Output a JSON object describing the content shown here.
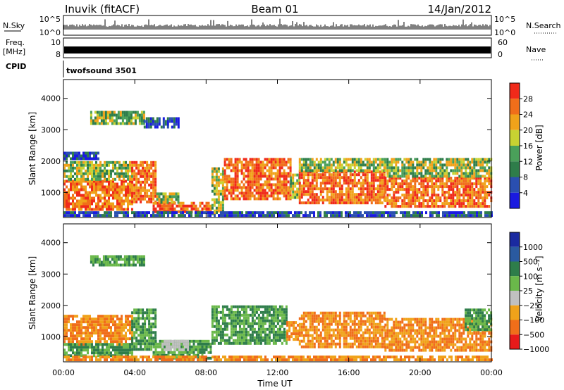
{
  "header": {
    "station": "Inuvik (fitACF)",
    "beam": "Beam 01",
    "date": "14/Jan/2012"
  },
  "side_labels": {
    "nsky": "N.Sky",
    "freq": "Freq.",
    "mhz": "[MHz]",
    "cpid": "CPID",
    "nsearch": "N.Search",
    "nave": "Nave"
  },
  "noise_panel": {
    "left_ticks": [
      "10^5",
      "10^0"
    ],
    "right_ticks": [
      "10^5",
      "10^0"
    ]
  },
  "freq_panel": {
    "left_ticks": [
      "10",
      "8"
    ],
    "right_ticks": [
      "60",
      "0"
    ]
  },
  "cpid_panel": {
    "program": "twofsound 3501"
  },
  "colors": {
    "power_scale": [
      "#1a1ae0",
      "#2a4fb0",
      "#2e7d4a",
      "#4aa05a",
      "#c8d232",
      "#f0a21a",
      "#f06e1a",
      "#f02a1a"
    ],
    "velocity_scale": [
      "#1a2aa0",
      "#2a5aa0",
      "#2e7d4a",
      "#6ab84a",
      "#c0c0c0",
      "#f0a21a",
      "#f06e1a",
      "#e81a1a"
    ]
  },
  "chart_data": [
    {
      "type": "heatmap",
      "panel": "power",
      "ylabel": "Slant Range [km]",
      "xlabel": "",
      "x_ticks": [
        "00:00",
        "04:00",
        "08:00",
        "12:00",
        "16:00",
        "20:00",
        "00:00"
      ],
      "y_ticks": [
        "1000",
        "2000",
        "3000",
        "4000"
      ],
      "xlim": [
        0,
        24
      ],
      "ylim": [
        200,
        4600
      ],
      "colorbar": {
        "title": "Power [dB]",
        "ticks": [
          "4",
          "8",
          "12",
          "16",
          "20",
          "24",
          "28"
        ],
        "range": [
          0,
          32
        ]
      },
      "regions": [
        {
          "t0": 0.0,
          "t1": 3.8,
          "r0": 500,
          "r1": 1400,
          "level": "high"
        },
        {
          "t0": 0.0,
          "t1": 3.8,
          "r0": 1400,
          "r1": 2000,
          "level": "mid"
        },
        {
          "t0": 3.8,
          "t1": 5.2,
          "r0": 700,
          "r1": 2000,
          "level": "high"
        },
        {
          "t0": 5.0,
          "t1": 8.3,
          "r0": 350,
          "r1": 700,
          "level": "high"
        },
        {
          "t0": 5.2,
          "t1": 6.5,
          "r0": 700,
          "r1": 1000,
          "level": "mid"
        },
        {
          "t0": 8.3,
          "t1": 9.0,
          "r0": 300,
          "r1": 1800,
          "level": "mid"
        },
        {
          "t0": 9.0,
          "t1": 12.7,
          "r0": 800,
          "r1": 2100,
          "level": "high"
        },
        {
          "t0": 12.7,
          "t1": 13.2,
          "r0": 800,
          "r1": 1600,
          "level": "mid"
        },
        {
          "t0": 13.2,
          "t1": 18.0,
          "r0": 700,
          "r1": 1700,
          "level": "high"
        },
        {
          "t0": 13.2,
          "t1": 18.0,
          "r0": 1700,
          "r1": 2100,
          "level": "mid"
        },
        {
          "t0": 18.0,
          "t1": 24.0,
          "r0": 600,
          "r1": 1500,
          "level": "high"
        },
        {
          "t0": 18.0,
          "t1": 24.0,
          "r0": 1500,
          "r1": 2100,
          "level": "mid"
        },
        {
          "t0": 1.5,
          "t1": 4.5,
          "r0": 3200,
          "r1": 3600,
          "level": "mid"
        },
        {
          "t0": 4.5,
          "t1": 6.5,
          "r0": 3100,
          "r1": 3400,
          "level": "low"
        },
        {
          "t0": 0.0,
          "t1": 2.0,
          "r0": 2100,
          "r1": 2300,
          "level": "low"
        },
        {
          "t0": 0.0,
          "t1": 24.0,
          "r0": 250,
          "r1": 400,
          "level": "low"
        }
      ]
    },
    {
      "type": "heatmap",
      "panel": "velocity",
      "ylabel": "Slant Range [km]",
      "xlabel": "Time UT",
      "x_ticks": [
        "00:00",
        "04:00",
        "08:00",
        "12:00",
        "16:00",
        "20:00",
        "00:00"
      ],
      "y_ticks": [
        "1000",
        "2000",
        "3000",
        "4000"
      ],
      "xlim": [
        0,
        24
      ],
      "ylim": [
        200,
        4600
      ],
      "colorbar": {
        "title": "Velocity [m s⁻¹]",
        "ticks": [
          "1000",
          "500",
          "100",
          "25",
          "−25",
          "−100",
          "−500",
          "−1000"
        ]
      },
      "regions": [
        {
          "t0": 0.0,
          "t1": 3.8,
          "r0": 800,
          "r1": 1700,
          "level": "neg"
        },
        {
          "t0": 0.0,
          "t1": 3.8,
          "r0": 400,
          "r1": 800,
          "level": "pos"
        },
        {
          "t0": 3.8,
          "t1": 5.2,
          "r0": 600,
          "r1": 1900,
          "level": "pos"
        },
        {
          "t0": 5.0,
          "t1": 8.3,
          "r0": 350,
          "r1": 900,
          "level": "pos"
        },
        {
          "t0": 5.5,
          "t1": 7.0,
          "r0": 600,
          "r1": 900,
          "level": "zero"
        },
        {
          "t0": 8.3,
          "t1": 12.5,
          "r0": 800,
          "r1": 2000,
          "level": "pos"
        },
        {
          "t0": 12.5,
          "t1": 13.2,
          "r0": 900,
          "r1": 1500,
          "level": "neg"
        },
        {
          "t0": 13.2,
          "t1": 18.0,
          "r0": 700,
          "r1": 1800,
          "level": "neg"
        },
        {
          "t0": 18.0,
          "t1": 24.0,
          "r0": 600,
          "r1": 1600,
          "level": "neg"
        },
        {
          "t0": 22.5,
          "t1": 24.0,
          "r0": 1200,
          "r1": 1900,
          "level": "pos"
        },
        {
          "t0": 1.5,
          "t1": 4.5,
          "r0": 3300,
          "r1": 3600,
          "level": "pos"
        },
        {
          "t0": 0.0,
          "t1": 24.0,
          "r0": 250,
          "r1": 400,
          "level": "neg"
        }
      ]
    }
  ]
}
